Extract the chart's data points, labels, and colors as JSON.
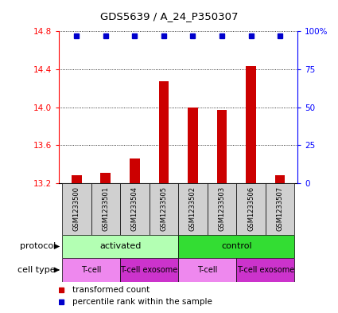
{
  "title": "GDS5639 / A_24_P350307",
  "samples": [
    "GSM1233500",
    "GSM1233501",
    "GSM1233504",
    "GSM1233505",
    "GSM1233502",
    "GSM1233503",
    "GSM1233506",
    "GSM1233507"
  ],
  "transformed_counts": [
    13.28,
    13.31,
    13.46,
    14.27,
    14.0,
    13.97,
    14.43,
    13.28
  ],
  "percentile_ranks": [
    100,
    100,
    100,
    100,
    100,
    100,
    100,
    100
  ],
  "ylim": [
    13.2,
    14.8
  ],
  "yticks": [
    13.2,
    13.6,
    14.0,
    14.4,
    14.8
  ],
  "y2ticks": [
    0,
    25,
    50,
    75,
    100
  ],
  "y2lim": [
    0,
    100
  ],
  "bar_color": "#cc0000",
  "dot_color": "#0000cc",
  "protocol_groups": [
    {
      "label": "activated",
      "start": 0,
      "end": 3,
      "color": "#b3ffb3"
    },
    {
      "label": "control",
      "start": 4,
      "end": 7,
      "color": "#33dd33"
    }
  ],
  "cell_type_groups": [
    {
      "label": "T-cell",
      "start": 0,
      "end": 1,
      "color": "#ee88ee"
    },
    {
      "label": "T-cell exosome",
      "start": 2,
      "end": 3,
      "color": "#cc33cc"
    },
    {
      "label": "T-cell",
      "start": 4,
      "end": 5,
      "color": "#ee88ee"
    },
    {
      "label": "T-cell exosome",
      "start": 6,
      "end": 7,
      "color": "#cc33cc"
    }
  ],
  "legend_items": [
    {
      "label": "transformed count",
      "color": "#cc0000"
    },
    {
      "label": "percentile rank within the sample",
      "color": "#0000cc"
    }
  ],
  "sample_box_color": "#d0d0d0",
  "bar_width": 0.35
}
